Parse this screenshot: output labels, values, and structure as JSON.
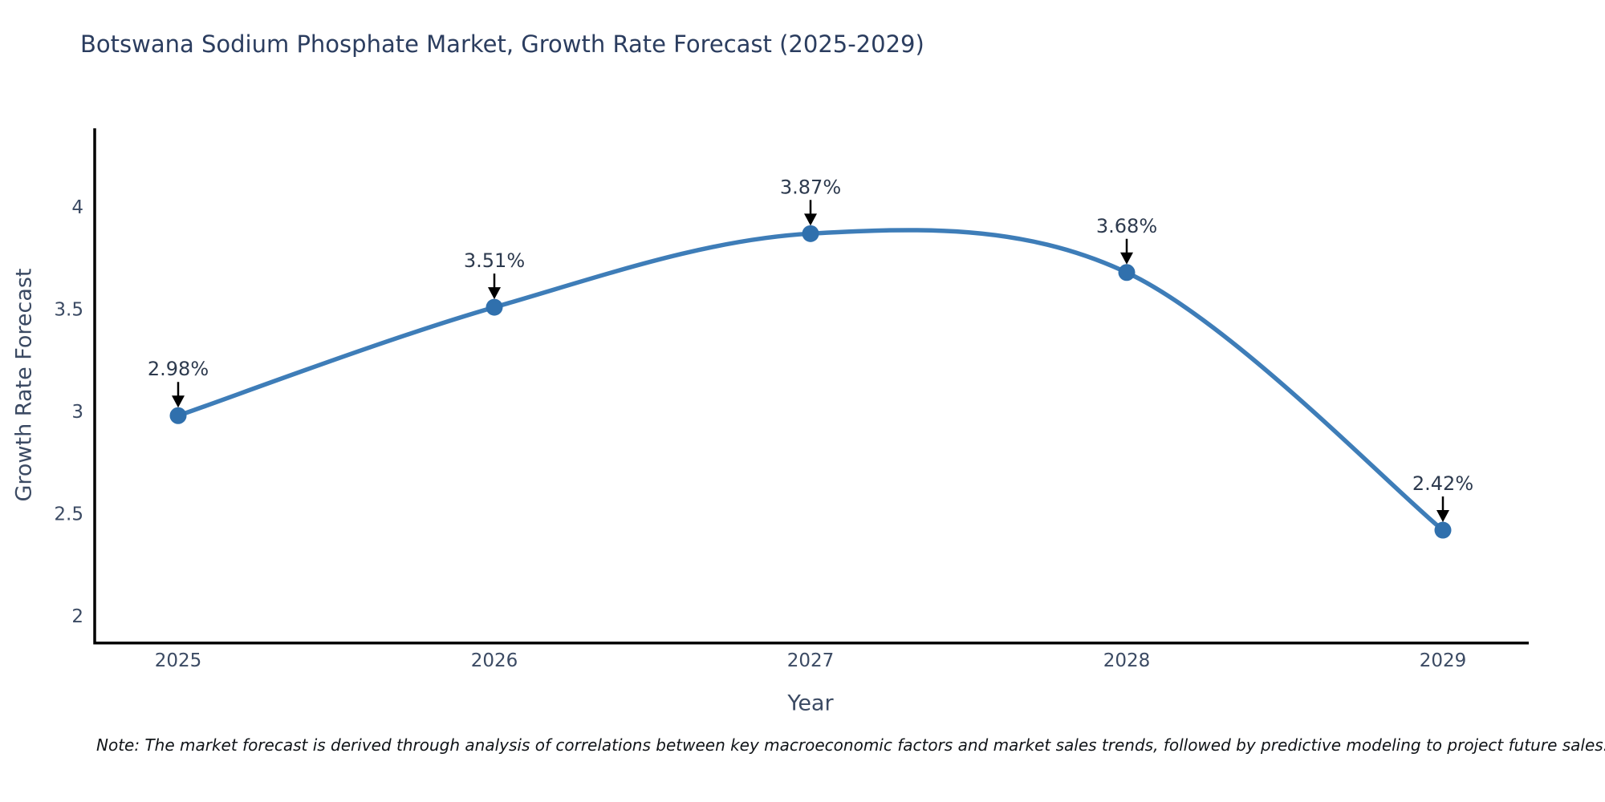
{
  "title": "Botswana Sodium Phosphate Market, Growth Rate Forecast (2025-2029)",
  "note": "Note: The market forecast is derived through analysis of correlations between key macroeconomic factors and market sales trends, followed by predictive modeling to project future sales.",
  "chart_data": {
    "type": "line",
    "title": "Botswana Sodium Phosphate Market, Growth Rate Forecast (2025-2029)",
    "xlabel": "Year",
    "ylabel": "Growth Rate Forecast",
    "x": [
      2025,
      2026,
      2027,
      2028,
      2029
    ],
    "values": [
      2.98,
      3.51,
      3.87,
      3.68,
      2.42
    ],
    "point_labels": [
      "2.98%",
      "3.51%",
      "3.87%",
      "3.68%",
      "2.42%"
    ],
    "xticks": [
      "2025",
      "2026",
      "2027",
      "2028",
      "2029"
    ],
    "yticks": [
      "2",
      "2.5",
      "3",
      "3.5",
      "4"
    ],
    "ytick_values": [
      2,
      2.5,
      3,
      3.5,
      4
    ],
    "ylim": [
      1.875,
      4.385
    ],
    "grid": false,
    "legend": null,
    "smooth": true,
    "annotation_arrows": true,
    "colors": {
      "line": "#3e7db8",
      "marker": "#3070ad",
      "axis": "#000000",
      "title_text": "#2b3d5f",
      "tick_text": "#3b4a63",
      "annotation_text": "#2d3a4e",
      "arrow": "#000000",
      "background": "#ffffff"
    }
  }
}
